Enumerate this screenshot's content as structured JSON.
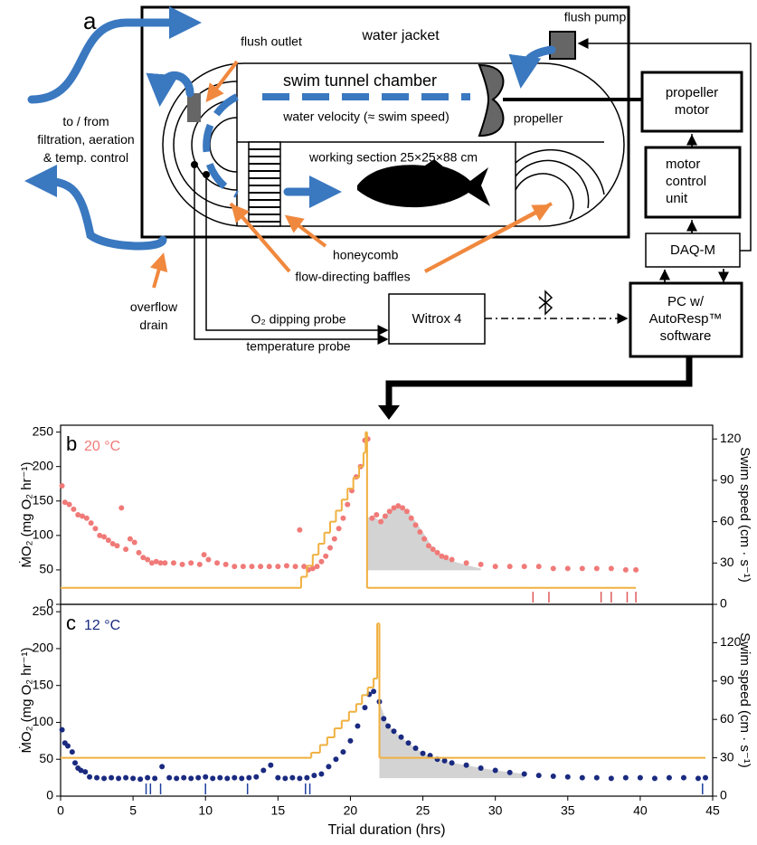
{
  "diagram": {
    "panel_label": "a",
    "water_jacket": "water jacket",
    "flush_pump": "flush pump",
    "flush_outlet": "flush outlet",
    "swim_tunnel_chamber": "swim tunnel chamber",
    "water_velocity": "water velocity (≈ swim speed)",
    "propeller": "propeller",
    "propeller_motor": [
      "propeller",
      "motor"
    ],
    "working_section": "working section 25×25×88 cm",
    "motor_control_unit": [
      "motor",
      "control",
      "unit"
    ],
    "filtration": [
      "to / from",
      "filtration, aeration",
      "& temp. control"
    ],
    "honeycomb": "honeycomb",
    "baffles": "flow-directing baffles",
    "overflow_drain": [
      "overflow",
      "drain"
    ],
    "daq": "DAQ-M",
    "pc": [
      "PC w/",
      "AutoResp™",
      "software"
    ],
    "witrox": "Witrox 4",
    "o2_probe": "O₂ dipping probe",
    "temperature_probe": "temperature probe"
  },
  "chart_data": [
    {
      "type": "scatter",
      "panel_label": "b",
      "temperature": "20 °C",
      "ylabel": "ṀO₂ (mg O₂ hr⁻¹)",
      "y2label": "Swim speed (cm · s⁻¹)",
      "xlim": [
        0,
        45
      ],
      "ylim": [
        0,
        260
      ],
      "yticks": [
        0,
        50,
        100,
        150,
        200,
        250
      ],
      "y2lim": [
        0,
        130
      ],
      "y2ticks": [
        0,
        30,
        60,
        90,
        120
      ],
      "series": [
        {
          "type": "scatter",
          "color": "#f07a78",
          "x": [
            0.1,
            0.3,
            0.6,
            0.9,
            1.2,
            1.5,
            1.8,
            2.1,
            2.4,
            2.7,
            3.0,
            3.3,
            3.6,
            3.9,
            4.2,
            4.5,
            4.8,
            5.1,
            5.4,
            5.7,
            6.0,
            6.3,
            6.6,
            6.9,
            7.2,
            7.8,
            8.4,
            9.0,
            9.6,
            9.9,
            10.2,
            10.8,
            11.4,
            12.0,
            12.6,
            13.2,
            13.8,
            14.4,
            15.0,
            15.6,
            16.2,
            16.5,
            16.8,
            17.1,
            17.4,
            17.7,
            18.0,
            18.3,
            18.6,
            18.9,
            19.2,
            19.5,
            19.8,
            20.1,
            20.4,
            20.7,
            21.0,
            21.2,
            21.5,
            21.8,
            22.1,
            22.4,
            22.7,
            23.0,
            23.3,
            23.6,
            23.9,
            24.2,
            24.5,
            24.8,
            25.1,
            25.4,
            25.7,
            26.0,
            26.3,
            26.6,
            27,
            28,
            29,
            30,
            31,
            32,
            33,
            34,
            35,
            36,
            37,
            38,
            39,
            39.7
          ],
          "values": [
            172,
            148,
            145,
            138,
            130,
            128,
            125,
            118,
            110,
            100,
            98,
            93,
            88,
            85,
            140,
            80,
            95,
            90,
            75,
            68,
            65,
            60,
            62,
            60,
            60,
            60,
            58,
            60,
            58,
            72,
            65,
            60,
            58,
            55,
            55,
            55,
            55,
            55,
            55,
            56,
            55,
            108,
            55,
            50,
            52,
            55,
            62,
            70,
            82,
            95,
            110,
            125,
            145,
            165,
            185,
            200,
            238,
            240,
            125,
            130,
            120,
            128,
            135,
            140,
            143,
            140,
            135,
            125,
            115,
            105,
            95,
            85,
            80,
            75,
            70,
            68,
            65,
            60,
            58,
            55,
            55,
            55,
            55,
            52,
            52,
            52,
            52,
            52,
            50,
            50
          ]
        },
        {
          "type": "step",
          "color": "#f0b040",
          "axis": "y2",
          "x": [
            0,
            16.6,
            17.0,
            17.4,
            17.8,
            18.2,
            18.6,
            19.0,
            19.4,
            19.8,
            20.2,
            20.6,
            20.9,
            21.05,
            21.15,
            39.7
          ],
          "values": [
            12,
            20,
            28,
            36,
            44,
            52,
            60,
            68,
            76,
            84,
            92,
            100,
            110,
            125,
            12,
            12
          ]
        }
      ],
      "shaded_area": {
        "color": "#d3d3d3",
        "x": [
          21.1,
          21.5,
          22,
          22.5,
          23,
          23.5,
          24,
          24.5,
          25,
          25.5,
          26,
          27,
          28,
          29
        ],
        "values": [
          125,
          128,
          122,
          132,
          140,
          142,
          135,
          120,
          105,
          88,
          75,
          63,
          57,
          52
        ],
        "baseline": 50
      },
      "event_ticks": {
        "color": "#e05a5a",
        "x": [
          32.6,
          33.7,
          37.3,
          38.0,
          39.1,
          39.7
        ]
      }
    },
    {
      "type": "scatter",
      "panel_label": "c",
      "temperature": "12 °C",
      "ylabel": "ṀO₂ (mg O₂ hr⁻¹)",
      "y2label": "Swim speed (cm · s⁻¹)",
      "xlabel": "Trial duration (hrs)",
      "xlim": [
        0,
        45
      ],
      "xticks": [
        0,
        5,
        10,
        15,
        20,
        25,
        30,
        35,
        40,
        45
      ],
      "ylim": [
        0,
        260
      ],
      "yticks": [
        0,
        50,
        100,
        150,
        200,
        250
      ],
      "y2lim": [
        0,
        150
      ],
      "y2ticks": [
        0,
        30,
        60,
        90,
        120
      ],
      "series": [
        {
          "type": "scatter",
          "color": "#1a2a80",
          "x": [
            0.1,
            0.3,
            0.5,
            0.8,
            1.0,
            1.2,
            1.4,
            1.7,
            2,
            2.5,
            3,
            3.5,
            4,
            4.5,
            5,
            5.5,
            6,
            6.5,
            7,
            7.5,
            8,
            8.5,
            9,
            9.5,
            10,
            10.5,
            11,
            11.5,
            12,
            12.5,
            13,
            13.5,
            14,
            14.5,
            15,
            15.5,
            16,
            16.5,
            17,
            17.5,
            18,
            18.5,
            19,
            19.5,
            20,
            20.5,
            21,
            21.3,
            21.6,
            22,
            22.3,
            22.6,
            23,
            23.5,
            24,
            24.5,
            25,
            25.5,
            26,
            26.5,
            27,
            28,
            29,
            30,
            31,
            32,
            33,
            34,
            35,
            36,
            37,
            38,
            39,
            40,
            41,
            42,
            43,
            44,
            44.5
          ],
          "values": [
            90,
            72,
            68,
            60,
            45,
            38,
            35,
            33,
            26,
            25,
            24,
            25,
            24,
            25,
            24,
            23,
            25,
            24,
            40,
            25,
            24,
            25,
            24,
            25,
            26,
            24,
            25,
            24,
            25,
            24,
            25,
            26,
            35,
            42,
            25,
            24,
            25,
            24,
            25,
            28,
            30,
            40,
            50,
            60,
            75,
            95,
            120,
            138,
            142,
            128,
            105,
            95,
            88,
            80,
            72,
            65,
            58,
            55,
            50,
            48,
            45,
            42,
            38,
            35,
            32,
            30,
            28,
            27,
            26,
            25,
            25,
            24,
            25,
            25,
            24,
            25,
            25,
            24,
            25
          ]
        },
        {
          "type": "step",
          "color": "#f0b040",
          "axis": "y2",
          "x": [
            0,
            17.3,
            17.9,
            18.4,
            18.9,
            19.4,
            19.9,
            20.4,
            20.8,
            21.2,
            21.6,
            21.85,
            22.0,
            44.5
          ],
          "values": [
            30,
            34,
            40,
            46,
            53,
            59,
            66,
            72,
            79,
            85,
            92,
            135,
            30,
            30
          ]
        }
      ],
      "shaded_area": {
        "color": "#d3d3d3",
        "x": [
          22,
          22.5,
          23,
          23.5,
          24,
          25,
          26,
          27,
          28,
          29,
          30,
          32
        ],
        "values": [
          128,
          100,
          88,
          80,
          72,
          58,
          50,
          45,
          42,
          38,
          35,
          30
        ],
        "baseline": 25
      },
      "event_ticks": {
        "color": "#1f3f9f",
        "x": [
          5.9,
          6.2,
          6.9,
          10.0,
          12.9,
          16.9,
          17.2,
          44.3
        ]
      }
    }
  ]
}
